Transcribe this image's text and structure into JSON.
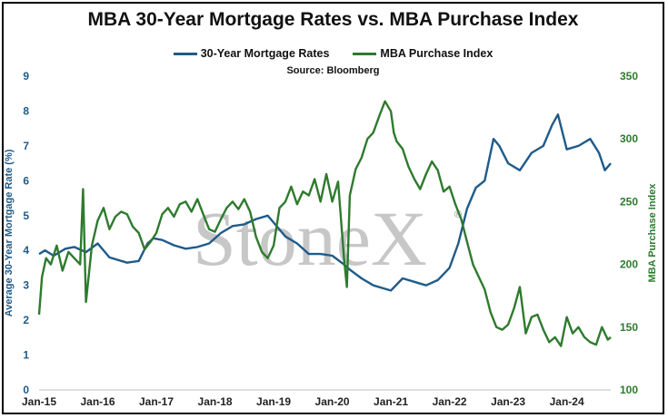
{
  "chart_data": {
    "type": "line",
    "title": "MBA 30-Year Mortgage Rates vs. MBA Purchase Index",
    "source": "Source: Bloomberg",
    "watermark": "StoneX",
    "watermark_mark": "®",
    "x_ticks": [
      "Jan-15",
      "Jan-16",
      "Jan-17",
      "Jan-18",
      "Jan-19",
      "Jan-20",
      "Jan-21",
      "Jan-22",
      "Jan-23",
      "Jan-24"
    ],
    "x_range": [
      2015.0,
      2024.75
    ],
    "y_left": {
      "label": "Average 30-Year Mortgage Rate (%)",
      "range": [
        0,
        9
      ],
      "ticks": [
        "0",
        "1",
        "2",
        "3",
        "4",
        "5",
        "6",
        "7",
        "8",
        "9"
      ],
      "color": "#1f5b8a"
    },
    "y_right": {
      "label": "MBA Purchase Index",
      "range": [
        100,
        350
      ],
      "ticks": [
        "100",
        "150",
        "200",
        "250",
        "300",
        "350"
      ],
      "color": "#2e7a2e"
    },
    "grid": false,
    "legend_position": "top",
    "series": [
      {
        "name": "30-Year Mortgage Rates",
        "axis": "left",
        "color": "#1f5b8a",
        "x": [
          2015.0,
          2015.1,
          2015.25,
          2015.45,
          2015.6,
          2015.8,
          2016.0,
          2016.2,
          2016.5,
          2016.7,
          2016.85,
          2016.95,
          2017.1,
          2017.3,
          2017.5,
          2017.7,
          2017.9,
          2018.1,
          2018.3,
          2018.5,
          2018.7,
          2018.9,
          2019.0,
          2019.2,
          2019.4,
          2019.6,
          2019.8,
          2020.0,
          2020.2,
          2020.3,
          2020.5,
          2020.7,
          2020.9,
          2021.0,
          2021.2,
          2021.4,
          2021.6,
          2021.8,
          2022.0,
          2022.15,
          2022.3,
          2022.45,
          2022.6,
          2022.75,
          2022.85,
          2023.0,
          2023.2,
          2023.4,
          2023.6,
          2023.75,
          2023.85,
          2024.0,
          2024.2,
          2024.4,
          2024.55,
          2024.65,
          2024.75
        ],
        "y": [
          3.9,
          4.0,
          3.85,
          4.05,
          4.1,
          3.95,
          4.2,
          3.8,
          3.65,
          3.7,
          4.2,
          4.35,
          4.3,
          4.15,
          4.05,
          4.1,
          4.2,
          4.5,
          4.7,
          4.75,
          4.9,
          5.0,
          4.8,
          4.4,
          4.2,
          3.9,
          3.9,
          3.85,
          3.6,
          3.45,
          3.2,
          3.0,
          2.9,
          2.85,
          3.2,
          3.1,
          3.0,
          3.15,
          3.5,
          4.2,
          5.2,
          5.8,
          6.0,
          7.2,
          7.0,
          6.5,
          6.3,
          6.8,
          7.0,
          7.6,
          7.9,
          6.9,
          7.0,
          7.2,
          6.8,
          6.3,
          6.5
        ]
      },
      {
        "name": "MBA Purchase Index",
        "axis": "right",
        "color": "#2e7a2e",
        "x": [
          2015.0,
          2015.05,
          2015.12,
          2015.2,
          2015.3,
          2015.4,
          2015.5,
          2015.6,
          2015.7,
          2015.75,
          2015.8,
          2015.9,
          2016.0,
          2016.1,
          2016.2,
          2016.3,
          2016.4,
          2016.5,
          2016.6,
          2016.7,
          2016.8,
          2016.9,
          2017.0,
          2017.1,
          2017.2,
          2017.3,
          2017.4,
          2017.5,
          2017.6,
          2017.7,
          2017.8,
          2017.9,
          2018.0,
          2018.1,
          2018.2,
          2018.3,
          2018.4,
          2018.5,
          2018.6,
          2018.7,
          2018.8,
          2018.9,
          2019.0,
          2019.1,
          2019.2,
          2019.3,
          2019.4,
          2019.5,
          2019.6,
          2019.7,
          2019.8,
          2019.9,
          2020.0,
          2020.1,
          2020.2,
          2020.25,
          2020.3,
          2020.4,
          2020.5,
          2020.6,
          2020.7,
          2020.8,
          2020.9,
          2021.0,
          2021.05,
          2021.1,
          2021.2,
          2021.3,
          2021.4,
          2021.5,
          2021.6,
          2021.7,
          2021.8,
          2021.9,
          2022.0,
          2022.1,
          2022.2,
          2022.3,
          2022.4,
          2022.5,
          2022.6,
          2022.7,
          2022.8,
          2022.9,
          2023.0,
          2023.1,
          2023.2,
          2023.3,
          2023.4,
          2023.5,
          2023.6,
          2023.7,
          2023.8,
          2023.9,
          2024.0,
          2024.1,
          2024.2,
          2024.3,
          2024.4,
          2024.5,
          2024.6,
          2024.7,
          2024.75
        ],
        "y": [
          160,
          190,
          205,
          200,
          215,
          195,
          210,
          205,
          200,
          260,
          170,
          215,
          235,
          245,
          228,
          238,
          242,
          240,
          230,
          225,
          212,
          218,
          225,
          240,
          245,
          238,
          248,
          250,
          242,
          252,
          240,
          228,
          226,
          236,
          245,
          250,
          244,
          252,
          242,
          222,
          210,
          205,
          215,
          245,
          250,
          262,
          248,
          258,
          255,
          268,
          250,
          272,
          250,
          266,
          205,
          182,
          255,
          276,
          285,
          300,
          305,
          318,
          330,
          322,
          305,
          298,
          292,
          278,
          268,
          260,
          272,
          282,
          275,
          258,
          262,
          248,
          236,
          218,
          200,
          190,
          180,
          162,
          150,
          148,
          152,
          165,
          182,
          145,
          158,
          160,
          148,
          138,
          142,
          135,
          158,
          145,
          150,
          142,
          138,
          136,
          150,
          140,
          142
        ]
      }
    ]
  }
}
